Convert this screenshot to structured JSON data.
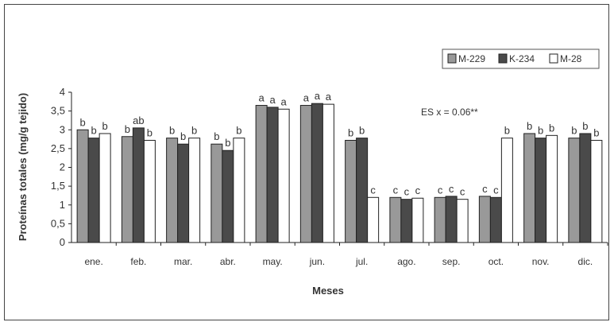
{
  "chart_data": {
    "type": "bar",
    "title": "",
    "xlabel": "Meses",
    "ylabel": "Proteínas totales (mg/g tejido)",
    "ylim": [
      0,
      4
    ],
    "yticks": [
      "0",
      "0,5",
      "1",
      "1,5",
      "2",
      "2,5",
      "3",
      "3,5",
      "4"
    ],
    "ytick_values": [
      0,
      0.5,
      1,
      1.5,
      2,
      2.5,
      3,
      3.5,
      4
    ],
    "grid": false,
    "legend_position": "top-right",
    "annotation": "ES x = 0.06**",
    "categories": [
      "ene.",
      "feb.",
      "mar.",
      "abr.",
      "may.",
      "jun.",
      "jul.",
      "ago.",
      "sep.",
      "oct.",
      "nov.",
      "dic."
    ],
    "series": [
      {
        "name": "M-229",
        "color": "#999999",
        "values": [
          3.0,
          2.82,
          2.78,
          2.62,
          3.65,
          3.65,
          2.72,
          1.2,
          1.2,
          1.23,
          2.9,
          2.78
        ],
        "sig": [
          "b",
          "b",
          "b",
          "b",
          "a",
          "a",
          "b",
          "c",
          "c",
          "c",
          "b",
          "b"
        ]
      },
      {
        "name": "K-234",
        "color": "#4a4a4a",
        "values": [
          2.78,
          3.05,
          2.62,
          2.45,
          3.6,
          3.7,
          2.78,
          1.15,
          1.23,
          1.2,
          2.78,
          2.9
        ],
        "sig": [
          "b",
          "ab",
          "b",
          "b",
          "a",
          "a",
          "b",
          "c",
          "c",
          "c",
          "b",
          "b"
        ]
      },
      {
        "name": "M-28",
        "color": "#ffffff",
        "values": [
          2.9,
          2.72,
          2.78,
          2.78,
          3.55,
          3.68,
          1.2,
          1.18,
          1.15,
          2.78,
          2.85,
          2.72
        ],
        "sig": [
          "b",
          "b",
          "b",
          "b",
          "a",
          "a",
          "c",
          "c",
          "c",
          "b",
          "b",
          "b"
        ]
      }
    ]
  }
}
